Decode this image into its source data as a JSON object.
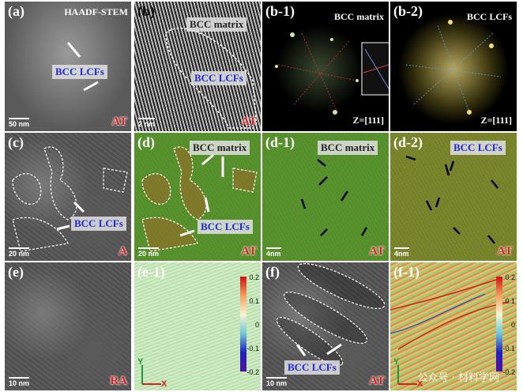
{
  "panels": [
    {
      "label": "(a)",
      "title": "HAADF-STEM",
      "region": "BCC LCFs",
      "scale": "50 nm",
      "condition": "AT"
    },
    {
      "label": "(b)",
      "matrix": "BCC matrix",
      "region": "BCC LCFs",
      "scale": "2 nm",
      "condition": "AT"
    },
    {
      "label": "(b-1)",
      "title": "BCC matrix",
      "zone": "Z=[111]"
    },
    {
      "label": "(b-2)",
      "title": "BCC LCFs",
      "zone": "Z=[111]"
    },
    {
      "label": "(c)",
      "region": "BCC LCFs",
      "scale": "20 nm",
      "condition": "A"
    },
    {
      "label": "(d)",
      "matrix": "BCC matrix",
      "region": "BCC LCFs",
      "scale": "20 nm",
      "condition": "AT"
    },
    {
      "label": "(d-1)",
      "matrix": "BCC matrix",
      "scale": "4nm",
      "condition": "AT"
    },
    {
      "label": "(d-2)",
      "region": "BCC LCFs",
      "scale": "4nm",
      "condition": "AT"
    },
    {
      "label": "(e)",
      "scale": "10 nm",
      "condition": "RA"
    },
    {
      "label": "(e-1)",
      "colorbar": [
        "0.2",
        "0.1",
        "0",
        "-0.1",
        "-0.2"
      ],
      "axes": [
        "Y",
        "X"
      ]
    },
    {
      "label": "(f)",
      "region": "BCC LCFs",
      "scale": "10 nm",
      "condition": "AT"
    },
    {
      "label": "(f-1)",
      "colorbar": [
        "0.2",
        "0.1",
        "0",
        "-0.1",
        "-0.2"
      ],
      "axes": [
        "Y",
        "X"
      ]
    }
  ],
  "watermark": "公众号 · 材料学网"
}
